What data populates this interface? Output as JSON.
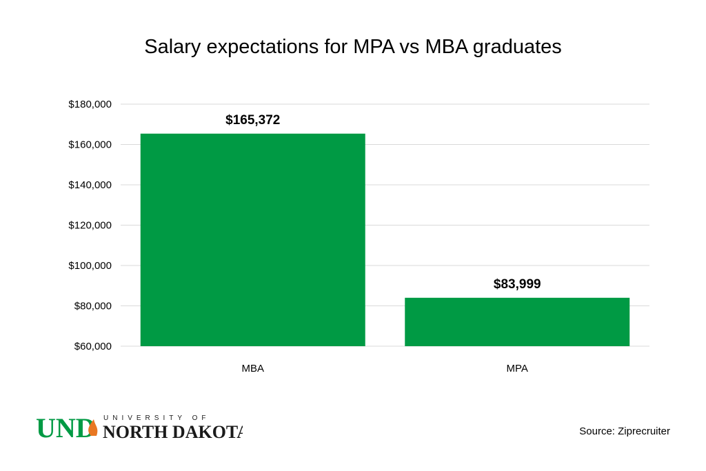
{
  "chart_data": {
    "type": "bar",
    "title": "Salary expectations for MPA vs MBA graduates",
    "categories": [
      "MBA",
      "MPA"
    ],
    "values": [
      165372,
      83999
    ],
    "data_labels": [
      "$165,372",
      "$83,999"
    ],
    "ylim": [
      60000,
      180000
    ],
    "yticks": [
      60000,
      80000,
      100000,
      120000,
      140000,
      160000,
      180000
    ],
    "ytick_labels": [
      "$60,000",
      "$80,000",
      "$100,000",
      "$120,000",
      "$140,000",
      "$160,000",
      "$180,000"
    ],
    "grid": true,
    "bar_color": "#009a44",
    "grid_color": "#d9d9d9"
  },
  "logo": {
    "mark": "UND",
    "top_line": "UNIVERSITY OF",
    "bottom_line": "NORTH DAKOTA",
    "brand_color": "#009a44",
    "flame_color": "#e87722"
  },
  "source": "Source: Ziprecruiter"
}
